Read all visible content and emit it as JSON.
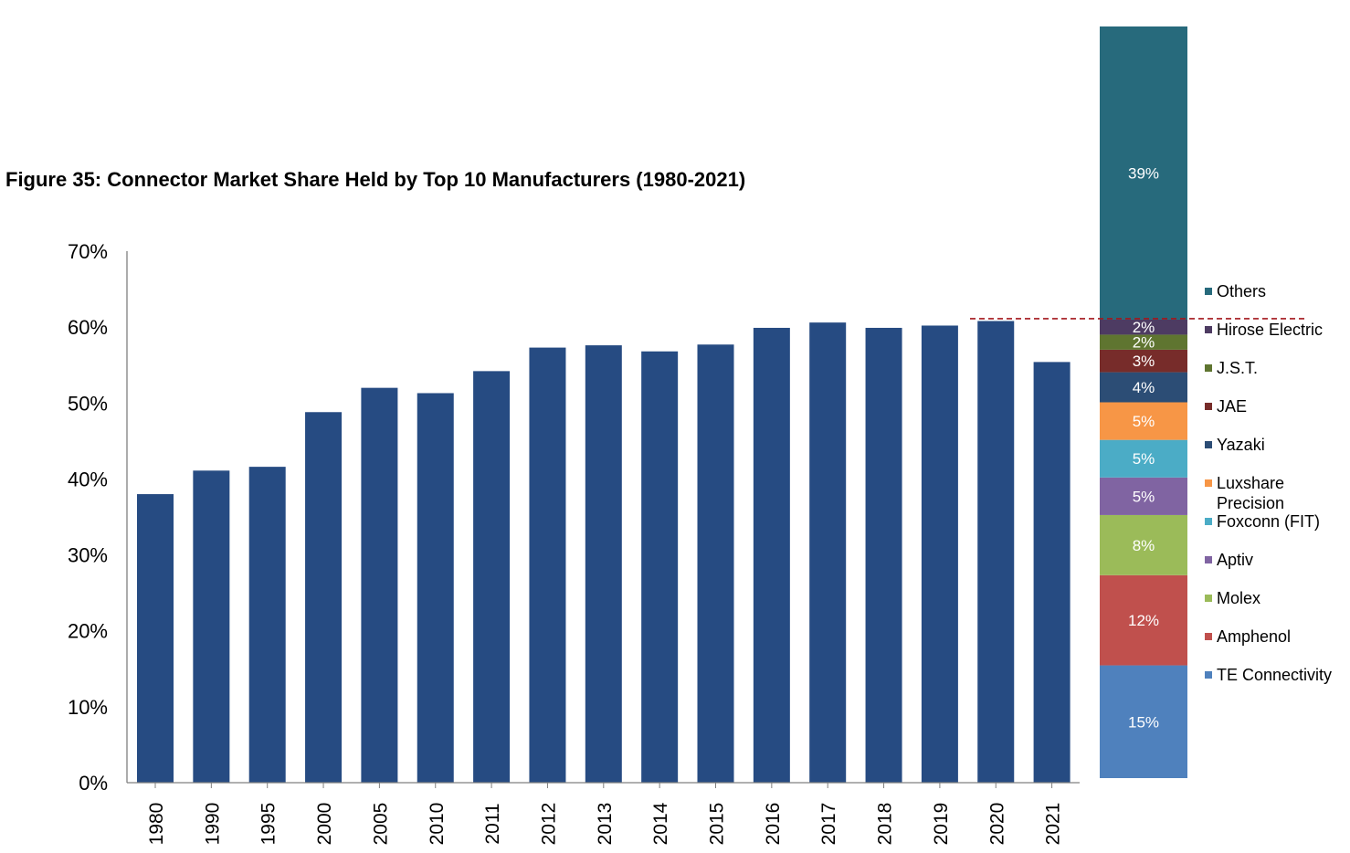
{
  "title": "Figure 35: Connector Market Share Held by Top 10 Manufacturers (1980-2021)",
  "colors": {
    "bar": "#264B82",
    "axis": "#808080",
    "dashed_line": "#A3161B",
    "text": "#000000",
    "segment_label": "#ffffff"
  },
  "chart_data": [
    {
      "type": "bar",
      "categories": [
        "1980",
        "1990",
        "1995",
        "2000",
        "2005",
        "2010",
        "2011",
        "2012",
        "2013",
        "2014",
        "2015",
        "2016",
        "2017",
        "2018",
        "2019",
        "2020",
        "2021"
      ],
      "values": [
        38.0,
        41.1,
        41.6,
        48.8,
        52.0,
        51.3,
        54.2,
        57.3,
        57.6,
        56.8,
        57.7,
        59.9,
        60.6,
        59.9,
        60.2,
        60.8,
        55.4
      ],
      "ylim": [
        0,
        70
      ],
      "yticks": [
        0,
        10,
        20,
        30,
        40,
        50,
        60,
        70
      ],
      "ytick_labels": [
        "0%",
        "10%",
        "20%",
        "30%",
        "40%",
        "50%",
        "60%",
        "70%"
      ],
      "xlabel": "",
      "ylabel": "",
      "grid": false
    },
    {
      "type": "stacked-bar",
      "segments": [
        {
          "name": "TE Connectivity",
          "value": 15,
          "label": "15%",
          "color": "#4F81BD"
        },
        {
          "name": "Amphenol",
          "value": 12,
          "label": "12%",
          "color": "#C0504D"
        },
        {
          "name": "Molex",
          "value": 8,
          "label": "8%",
          "color": "#9BBB59"
        },
        {
          "name": "Aptiv",
          "value": 5,
          "label": "5%",
          "color": "#8064A2"
        },
        {
          "name": "Foxconn (FIT)",
          "value": 5,
          "label": "5%",
          "color": "#4BACC6"
        },
        {
          "name": "Luxshare Precision",
          "value": 5,
          "label": "5%",
          "color": "#F79646"
        },
        {
          "name": "Yazaki",
          "value": 4,
          "label": "4%",
          "color": "#2C4D75"
        },
        {
          "name": "JAE",
          "value": 3,
          "label": "3%",
          "color": "#772C2A"
        },
        {
          "name": "J.S.T.",
          "value": 2,
          "label": "2%",
          "color": "#5F7530"
        },
        {
          "name": "Hirose Electric",
          "value": 2,
          "label": "2%",
          "color": "#4D3B62"
        },
        {
          "name": "Others",
          "value": 39,
          "label": "39%",
          "color": "#276A7C"
        }
      ],
      "legend_order": [
        "Others",
        "Hirose Electric",
        "J.S.T.",
        "JAE",
        "Yazaki",
        "Luxshare Precision",
        "Foxconn (FIT)",
        "Aptiv",
        "Molex",
        "Amphenol",
        "TE Connectivity"
      ],
      "legend_lines": [
        [
          "Others"
        ],
        [
          "Hirose Electric"
        ],
        [
          "J.S.T."
        ],
        [
          "JAE"
        ],
        [
          "Yazaki"
        ],
        [
          "Luxshare",
          "Precision"
        ],
        [
          "Foxconn (FIT)"
        ],
        [
          "Aptiv"
        ],
        [
          "Molex"
        ],
        [
          "Amphenol"
        ],
        [
          "TE Connectivity"
        ]
      ],
      "legend_placement": "right"
    }
  ]
}
